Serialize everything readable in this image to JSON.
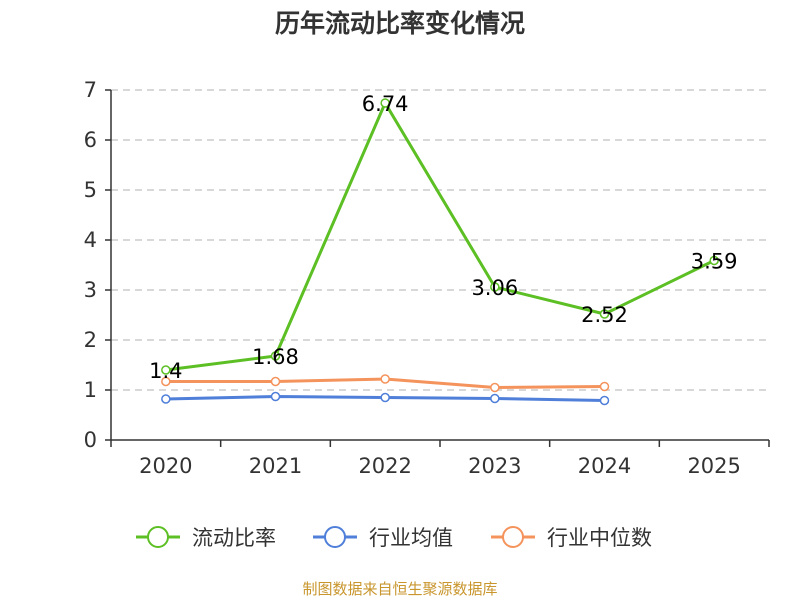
{
  "title": "历年流动比率变化情况",
  "source": "制图数据来自恒生聚源数据库",
  "colors": {
    "current_ratio": "#5cbf24",
    "industry_avg": "#4f7fd9",
    "industry_median": "#f4935c",
    "grid": "#cccccc",
    "axis": "#333333"
  },
  "chart_data": {
    "type": "line",
    "title": "历年流动比率变化情况",
    "categories": [
      "2020",
      "2021",
      "2022",
      "2023",
      "2024",
      "2025"
    ],
    "ylim": [
      0,
      7
    ],
    "yticks": [
      0,
      1,
      2,
      3,
      4,
      5,
      6,
      7
    ],
    "grid": true,
    "legend_position": "bottom",
    "series": [
      {
        "name": "流动比率",
        "key": "current_ratio",
        "values": [
          1.4,
          1.68,
          6.74,
          3.06,
          2.52,
          3.59
        ],
        "labels": [
          "1.4",
          "1.68",
          "6.74",
          "3.06",
          "2.52",
          "3.59"
        ],
        "show_labels": true
      },
      {
        "name": "行业均值",
        "key": "industry_avg",
        "values": [
          0.82,
          0.87,
          0.85,
          0.83,
          0.79,
          null
        ],
        "show_labels": false
      },
      {
        "name": "行业中位数",
        "key": "industry_median",
        "values": [
          1.17,
          1.17,
          1.22,
          1.05,
          1.07,
          null
        ],
        "show_labels": false
      }
    ]
  }
}
